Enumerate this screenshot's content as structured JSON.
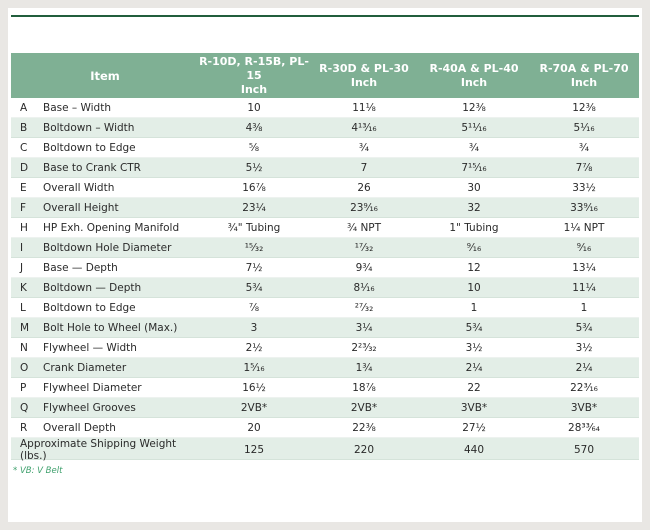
{
  "colors": {
    "header_bg": "#7fb094",
    "stripe_bg": "#e3eee7",
    "rule": "#215e3c",
    "footnote_text": "#3fa06d",
    "header_text": "#ffffff",
    "body_text": "#2a2a2a",
    "frame_bg": "#e9e7e4",
    "page_bg": "#ffffff"
  },
  "page": {
    "footnote": "* VB: V Belt"
  },
  "table": {
    "item_header": "Item",
    "unit_label": "Inch",
    "model_headers": [
      "R-10D, R-15B, PL-15",
      "R-30D & PL-30",
      "R-40A & PL-40",
      "R-70A & PL-70"
    ],
    "rows": [
      {
        "letter": "A",
        "item": "Base – Width",
        "values": [
          "10",
          "11⅛",
          "12⅜",
          "12⅜"
        ]
      },
      {
        "letter": "B",
        "item": "Boltdown – Width",
        "values": [
          "4⅜",
          "4¹³⁄₁₆",
          "5¹¹⁄₁₆",
          "5¹⁄₁₆"
        ]
      },
      {
        "letter": "C",
        "item": "Boltdown to Edge",
        "values": [
          "⅝",
          "¾",
          "¾",
          "¾"
        ]
      },
      {
        "letter": "D",
        "item": "Base to Crank CTR",
        "values": [
          "5½",
          "7",
          "7¹⁵⁄₁₆",
          "7⅞"
        ]
      },
      {
        "letter": "E",
        "item": "Overall Width",
        "values": [
          "16⅞",
          "26",
          "30",
          "33½"
        ]
      },
      {
        "letter": "F",
        "item": "Overall Height",
        "values": [
          "23¼",
          "23⁹⁄₁₆",
          "32",
          "33⁹⁄₁₆"
        ]
      },
      {
        "letter": "H",
        "item": "HP Exh. Opening Manifold",
        "values": [
          "¾\" Tubing",
          "¾ NPT",
          "1\" Tubing",
          "1¼ NPT"
        ]
      },
      {
        "letter": "I",
        "item": "Boltdown Hole Diameter",
        "values": [
          "¹⁵⁄₃₂",
          "¹⁷⁄₃₂",
          "⁹⁄₁₆",
          "⁹⁄₁₆"
        ]
      },
      {
        "letter": "J",
        "item": "Base — Depth",
        "values": [
          "7½",
          "9¾",
          "12",
          "13¼"
        ]
      },
      {
        "letter": "K",
        "item": "Boltdown — Depth",
        "values": [
          "5¾",
          "8¹⁄₁₆",
          "10",
          "11¼"
        ]
      },
      {
        "letter": "L",
        "item": "Boltdown to Edge",
        "values": [
          "⅞",
          "²⁷⁄₃₂",
          "1",
          "1"
        ]
      },
      {
        "letter": "M",
        "item": "Bolt Hole to Wheel (Max.)",
        "values": [
          "3",
          "3¼",
          "5¾",
          "5¾"
        ]
      },
      {
        "letter": "N",
        "item": "Flywheel — Width",
        "values": [
          "2½",
          "2²³⁄₃₂",
          "3½",
          "3½"
        ]
      },
      {
        "letter": "O",
        "item": "Crank Diameter",
        "values": [
          "1⁵⁄₁₆",
          "1¾",
          "2¼",
          "2¼"
        ]
      },
      {
        "letter": "P",
        "item": "Flywheel Diameter",
        "values": [
          "16½",
          "18⅞",
          "22",
          "22³⁄₁₆"
        ]
      },
      {
        "letter": "Q",
        "item": "Flywheel Grooves",
        "values": [
          "2VB*",
          "2VB*",
          "3VB*",
          "3VB*"
        ]
      },
      {
        "letter": "R",
        "item": "Overall Depth",
        "values": [
          "20",
          "22⅜",
          "27½",
          "28³³⁄₆₄"
        ]
      }
    ],
    "summary_row": {
      "label": "Approximate Shipping Weight (lbs.)",
      "values": [
        "125",
        "220",
        "440",
        "570"
      ]
    }
  }
}
